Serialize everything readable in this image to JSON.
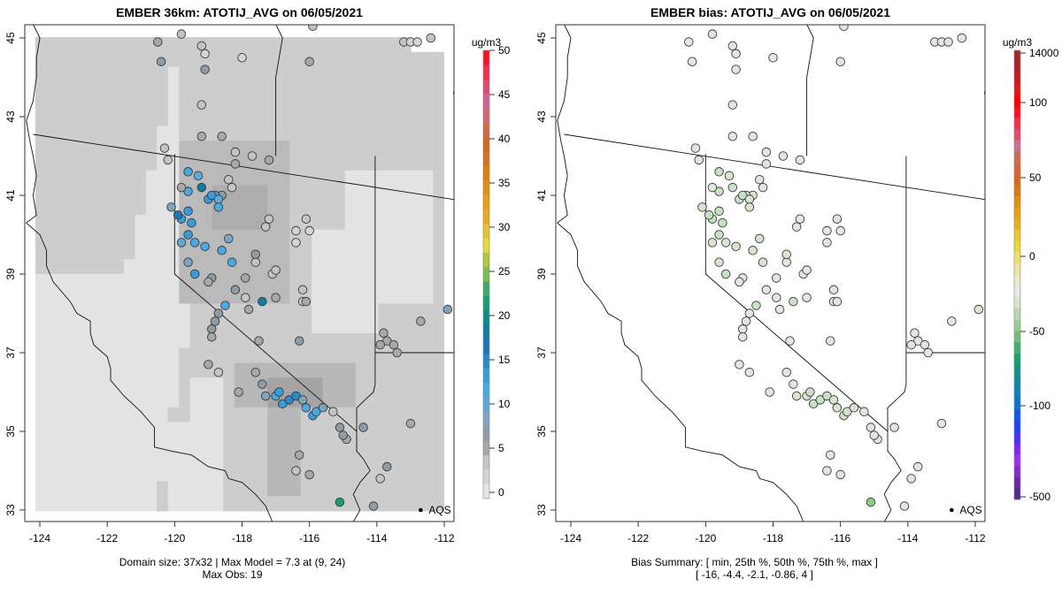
{
  "chart_data": [
    {
      "type": "heatmap",
      "title": "EMBER 36km: ATOTIJ_AVG on 06/05/2021",
      "xlim": [
        -124.4,
        -111.7
      ],
      "ylim": [
        32.7,
        45.35
      ],
      "x_ticks": [
        "-124",
        "-122",
        "-120",
        "-118",
        "-116",
        "-114",
        "-112"
      ],
      "y_ticks": [
        "33",
        "35",
        "37",
        "39",
        "41",
        "43",
        "45"
      ],
      "colorbar": {
        "unit": "ug/m3",
        "range": [
          -2,
          51
        ],
        "tick_labels": [
          "0",
          "5",
          "10",
          "15",
          "20",
          "25",
          "30",
          "35",
          "40",
          "45",
          "50"
        ],
        "colors": [
          "#e5e5e5",
          "#d4d4d4",
          "#c4c4c4",
          "#a8a8a8",
          "#8f9ba5",
          "#7ea5bf",
          "#5fa8d8",
          "#4aaae0",
          "#3a9cda",
          "#2c88cc",
          "#1e75b8",
          "#167a9f",
          "#138a8a",
          "#1a9a78",
          "#45a86a",
          "#7fbb55",
          "#b0c840",
          "#e4d83a",
          "#e8c030",
          "#e8aa20",
          "#e8a010",
          "#e09010",
          "#dc8010",
          "#d87020",
          "#d06a28",
          "#d06a48",
          "#d06a70",
          "#d06090",
          "#e04a70",
          "#f03050",
          "#ff1020"
        ]
      },
      "annotation": "AQS",
      "footer": [
        "Domain size: 37x32 | Max Model = 7.3 at (9, 24)",
        "Max Obs: 19"
      ],
      "points": "observation stations colored by observed value"
    },
    {
      "type": "scatter",
      "title": "EMBER bias: ATOTIJ_AVG on 06/05/2021",
      "xlim": [
        -124.4,
        -111.7
      ],
      "ylim": [
        32.7,
        45.35
      ],
      "x_ticks": [
        "-124",
        "-122",
        "-120",
        "-118",
        "-116",
        "-114",
        "-112"
      ],
      "y_ticks": [
        "33",
        "35",
        "37",
        "39",
        "41",
        "43",
        "45"
      ],
      "colorbar": {
        "unit": "ug/m3",
        "tick_labels": [
          "-500",
          "-100",
          "-50",
          "0",
          "50",
          "100",
          "14000"
        ],
        "colors": [
          "#5a2a8a",
          "#6a28a8",
          "#8a28d0",
          "#a030e8",
          "#7a28f0",
          "#4a30f8",
          "#2040f8",
          "#1058e8",
          "#1070d0",
          "#1080b8",
          "#108aa0",
          "#109488",
          "#18a070",
          "#40b070",
          "#70c078",
          "#98cc90",
          "#b8d8b0",
          "#d8e4d0",
          "#e8e8e8",
          "#ece8c8",
          "#ece4a0",
          "#ece070",
          "#ecd840",
          "#ecc830",
          "#e8b020",
          "#e8a010",
          "#e09010",
          "#dc7810",
          "#d86820",
          "#d06838",
          "#d06a58",
          "#d07090",
          "#e04c70",
          "#f03050",
          "#ff1020",
          "#ff0000",
          "#e01818",
          "#c81c1c",
          "#b02020",
          "#a02828"
        ]
      },
      "annotation": "AQS",
      "footer": [
        "Bias Summary: [ min, 25th %, 50th %, 75th %, max ]",
        "[ -16,   -4.4,   -2.1,   -0.86,   4 ]"
      ],
      "bias_summary": {
        "min": -16,
        "p25": -4.4,
        "p50": -2.1,
        "p75": -0.86,
        "max": 4
      }
    }
  ]
}
